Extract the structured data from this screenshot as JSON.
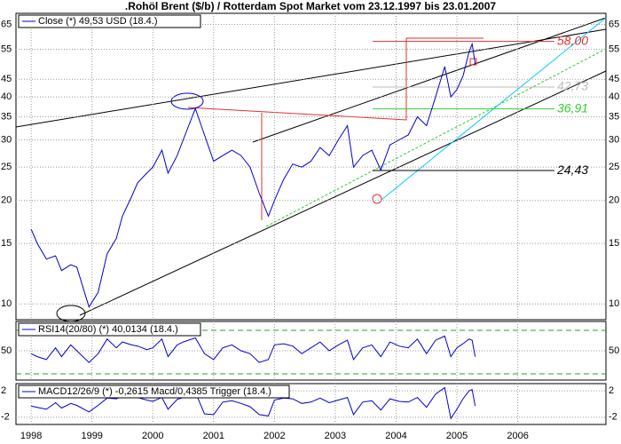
{
  "chart_data": [
    {
      "type": "line",
      "title": ".Rohöl Brent ($/b) / Rotterdam Spot Market vom 23.12.1997 bis 23.01.2007",
      "yscale": "log",
      "grid": true,
      "legend": "top-left",
      "xlim": [
        1997.75,
        2007.45
      ],
      "ylim": [
        9,
        70
      ],
      "yticks": [
        10,
        15,
        20,
        25,
        30,
        35,
        40,
        45,
        55,
        65
      ],
      "x": [
        1998.0,
        1998.1,
        1998.25,
        1998.4,
        1998.5,
        1998.65,
        1998.75,
        1998.95,
        1999.1,
        1999.25,
        1999.4,
        1999.5,
        1999.65,
        1999.75,
        1999.9,
        2000.0,
        2000.15,
        2000.25,
        2000.4,
        2000.5,
        2000.7,
        2000.85,
        2001.0,
        2001.15,
        2001.3,
        2001.45,
        2001.6,
        2001.75,
        2001.9,
        2002.0,
        2002.15,
        2002.3,
        2002.45,
        2002.6,
        2002.75,
        2002.9,
        2003.05,
        2003.2,
        2003.3,
        2003.45,
        2003.6,
        2003.75,
        2003.9,
        2004.05,
        2004.2,
        2004.35,
        2004.5,
        2004.65,
        2004.8,
        2004.9,
        2005.0,
        2005.1,
        2005.2,
        2005.25,
        2005.3
      ],
      "series": [
        {
          "name": "Close (*) 49,53 USD (18.4.)",
          "color": "#0000cc",
          "values": [
            16.5,
            15,
            13.5,
            13.8,
            12.5,
            13,
            12.8,
            9.8,
            10.8,
            14,
            15.5,
            18,
            20.5,
            22.5,
            24,
            25,
            28,
            24,
            27,
            30,
            37,
            31,
            26,
            27,
            28,
            27,
            25,
            21,
            18,
            20,
            23,
            25.5,
            25,
            26,
            28.5,
            27,
            30,
            33,
            25,
            27,
            28,
            24.5,
            29,
            30,
            31,
            35,
            33,
            40,
            49,
            40,
            42,
            46,
            54,
            57,
            50
          ]
        }
      ],
      "annotations": [
        {
          "text": "58,00",
          "value": 58,
          "color": "#e03030"
        },
        {
          "text": "42,73",
          "value": 42.73,
          "color": "#bbbbbb"
        },
        {
          "text": "36,91",
          "value": 36.91,
          "color": "#33cc33"
        },
        {
          "text": "24,43",
          "value": 24.43,
          "color": "#000000"
        }
      ]
    },
    {
      "type": "line",
      "grid": true,
      "legend": "top-left",
      "xlim": [
        1997.75,
        2007.45
      ],
      "ylim": [
        0,
        100
      ],
      "yticks": [
        50
      ],
      "x": [
        1998.0,
        1998.1,
        1998.25,
        1998.4,
        1998.5,
        1998.65,
        1998.75,
        1998.95,
        1999.1,
        1999.25,
        1999.4,
        1999.5,
        1999.65,
        1999.75,
        1999.9,
        2000.0,
        2000.15,
        2000.25,
        2000.4,
        2000.5,
        2000.7,
        2000.85,
        2001.0,
        2001.15,
        2001.3,
        2001.45,
        2001.6,
        2001.75,
        2001.9,
        2002.0,
        2002.15,
        2002.3,
        2002.45,
        2002.6,
        2002.75,
        2002.9,
        2003.05,
        2003.2,
        2003.3,
        2003.45,
        2003.6,
        2003.75,
        2003.9,
        2004.05,
        2004.2,
        2004.35,
        2004.5,
        2004.65,
        2004.8,
        2004.9,
        2005.0,
        2005.1,
        2005.2,
        2005.25,
        2005.3
      ],
      "series": [
        {
          "name": "RSI14(20/80) (*) 40,0134 (18.4.)",
          "color": "#0000cc",
          "values": [
            45,
            40,
            35,
            55,
            40,
            60,
            50,
            30,
            45,
            70,
            55,
            65,
            60,
            58,
            52,
            55,
            70,
            40,
            60,
            65,
            72,
            45,
            35,
            55,
            60,
            50,
            45,
            30,
            35,
            60,
            62,
            58,
            45,
            55,
            65,
            50,
            60,
            68,
            35,
            55,
            60,
            40,
            65,
            58,
            55,
            70,
            45,
            68,
            75,
            40,
            55,
            62,
            70,
            68,
            40
          ]
        }
      ]
    },
    {
      "type": "line",
      "grid": true,
      "legend": "top-left",
      "xlim": [
        1997.75,
        2007.45
      ],
      "ylim": [
        -3.1,
        3.1
      ],
      "yticks": [
        2,
        -2
      ],
      "xticks": [
        1998,
        1999,
        2000,
        2001,
        2002,
        2003,
        2004,
        2005,
        2006
      ],
      "x": [
        1998.0,
        1998.1,
        1998.25,
        1998.4,
        1998.5,
        1998.65,
        1998.75,
        1998.95,
        1999.1,
        1999.25,
        1999.4,
        1999.5,
        1999.65,
        1999.75,
        1999.9,
        2000.0,
        2000.15,
        2000.25,
        2000.4,
        2000.5,
        2000.7,
        2000.85,
        2001.0,
        2001.15,
        2001.3,
        2001.45,
        2001.6,
        2001.75,
        2001.9,
        2002.0,
        2002.15,
        2002.3,
        2002.45,
        2002.6,
        2002.75,
        2002.9,
        2003.05,
        2003.2,
        2003.3,
        2003.45,
        2003.6,
        2003.75,
        2003.9,
        2004.05,
        2004.2,
        2004.35,
        2004.5,
        2004.65,
        2004.8,
        2004.9,
        2005.0,
        2005.1,
        2005.2,
        2005.25,
        2005.3
      ],
      "series": [
        {
          "name": "MACD12/26/9 (*) -0,2615 Macd/0,4385 Trigger (18.4.)",
          "color": "#0000cc",
          "values": [
            -0.3,
            -0.5,
            -0.8,
            0.2,
            -0.6,
            0.1,
            -0.2,
            -1.2,
            -0.2,
            0.9,
            0.8,
            1.2,
            1.1,
            1.0,
            0.6,
            0.4,
            1.0,
            -0.8,
            0.7,
            1.0,
            1.8,
            -1.5,
            -1.6,
            0.3,
            0.5,
            0.1,
            -0.4,
            -1.6,
            -1.8,
            0.6,
            0.9,
            0.8,
            0.1,
            0.3,
            0.9,
            0.2,
            0.6,
            1.0,
            -1.6,
            0.3,
            0.5,
            -0.9,
            0.8,
            0.4,
            0.3,
            1.0,
            -0.5,
            1.5,
            2.5,
            -2.2,
            -0.8,
            0.8,
            2.0,
            2.2,
            -0.3
          ]
        }
      ]
    }
  ]
}
